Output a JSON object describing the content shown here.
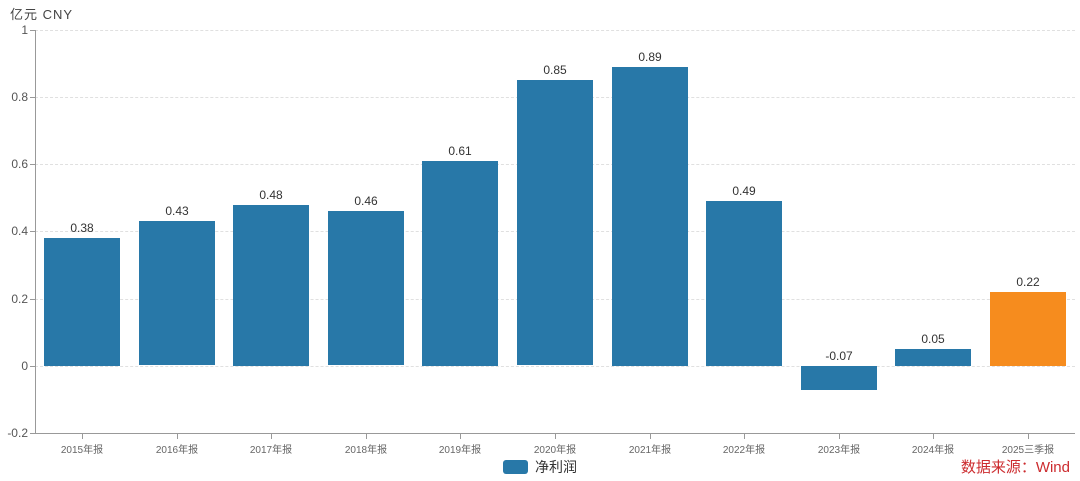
{
  "header": {
    "axis_unit": "亿元 CNY"
  },
  "chart_data": {
    "type": "bar",
    "title": "",
    "categories": [
      "2015年报",
      "2016年报",
      "2017年报",
      "2018年报",
      "2019年报",
      "2020年报",
      "2021年报",
      "2022年报",
      "2023年报",
      "2024年报",
      "2025三季报"
    ],
    "series": [
      {
        "name": "净利润",
        "values": [
          0.38,
          0.43,
          0.48,
          0.46,
          0.61,
          0.85,
          0.89,
          0.49,
          -0.07,
          0.05,
          0.22
        ]
      }
    ],
    "value_labels": [
      "0.38",
      "0.43",
      "0.48",
      "0.46",
      "0.61",
      "0.85",
      "0.89",
      "0.49",
      "-0.07",
      "0.05",
      "0.22"
    ],
    "xlabel": "",
    "ylabel": "亿元 CNY",
    "ylim": [
      -0.2,
      1
    ],
    "yticks": [
      1,
      0.8,
      0.6,
      0.4,
      0.2,
      0,
      -0.2
    ],
    "ytick_labels": [
      "1",
      "0.8",
      "0.6",
      "0.4",
      "0.2",
      "0",
      "-0.2"
    ],
    "grid": true,
    "legend_position": "bottom",
    "bar_color": "#2878a8",
    "highlight_color": "#f68c1e",
    "highlight_index": 10
  },
  "legend": {
    "label": "净利润",
    "swatch_color": "#2878a8"
  },
  "footer": {
    "source": "数据来源：Wind",
    "source_color": "#cc2b2e"
  }
}
